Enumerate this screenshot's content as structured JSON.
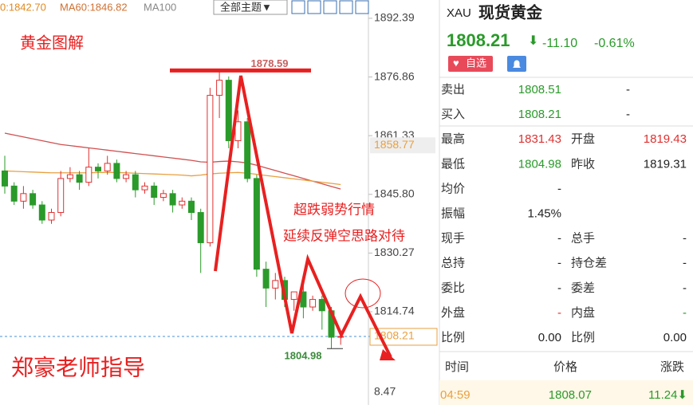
{
  "chart_data": {
    "type": "candlestick",
    "ma_legend": [
      "0:1842.70",
      "MA60:1846.82",
      "MA100"
    ],
    "theme_button": "全部主题▼",
    "ylim": [
      1790.06,
      1897.23
    ],
    "yticks": [
      1892.39,
      1876.86,
      1861.33,
      1845.8,
      1830.27,
      1814.74
    ],
    "ytick_labels": [
      "1892.39",
      "1876.86",
      "1861.33",
      "1845.80",
      "1830.27",
      "1814.74"
    ],
    "cut_label": "8.47",
    "open": [
      1852,
      1848,
      1844,
      1846,
      1843,
      1839,
      1841,
      1850,
      1851,
      1849,
      1853,
      1852,
      1854,
      1850,
      1851,
      1847,
      1848,
      1845,
      1846,
      1843,
      1844,
      1841,
      1833,
      1872,
      1876,
      1860,
      1865,
      1850,
      1826,
      1821,
      1823,
      1818,
      1820,
      1816,
      1818,
      1815,
      1808
    ],
    "high": [
      1856,
      1849,
      1848,
      1847,
      1844,
      1842,
      1852,
      1853,
      1852,
      1858,
      1854,
      1856,
      1855,
      1852,
      1852,
      1849,
      1849,
      1847,
      1847,
      1845,
      1845,
      1842,
      1874,
      1878.59,
      1877,
      1868,
      1866,
      1851,
      1828,
      1825,
      1824,
      1820,
      1822,
      1819,
      1819,
      1816,
      1809
    ],
    "low": [
      1846,
      1843,
      1842,
      1842,
      1838,
      1838,
      1840,
      1849,
      1847,
      1848,
      1850,
      1851,
      1849,
      1849,
      1845,
      1846,
      1843,
      1844,
      1841,
      1842,
      1839,
      1825,
      1832,
      1866,
      1858,
      1858,
      1849,
      1824,
      1816,
      1818,
      1816,
      1815,
      1813,
      1815,
      1810,
      1804.98,
      1806
    ],
    "close": [
      1848,
      1844,
      1846,
      1843,
      1839,
      1841,
      1850,
      1851,
      1849,
      1853,
      1852,
      1854,
      1850,
      1851,
      1847,
      1848,
      1845,
      1846,
      1843,
      1844,
      1841,
      1833,
      1872,
      1876,
      1860,
      1865,
      1850,
      1826,
      1821,
      1823,
      1818,
      1820,
      1816,
      1818,
      1815,
      1808,
      1808.21
    ],
    "up_color": "#e03030",
    "down_color": "#2a9a2a",
    "series": [
      {
        "color": "#d05050",
        "values": [
          1862,
          1861.5,
          1861,
          1860.5,
          1860,
          1859.5,
          1859,
          1858.7,
          1858.4,
          1858.1,
          1857.8,
          1857.5,
          1857.2,
          1856.9,
          1856.6,
          1856.3,
          1856,
          1855.7,
          1855.4,
          1855.1,
          1854.8,
          1854.4,
          1854.3,
          1854.5,
          1854.6,
          1854.4,
          1854.1,
          1853.5,
          1852.8,
          1852.1,
          1851.4,
          1850.7,
          1850,
          1849.3,
          1848.6,
          1847.9,
          1847.2
        ]
      },
      {
        "color": "#e8a040",
        "values": [
          1852,
          1851.9,
          1851.8,
          1851.7,
          1851.6,
          1851.5,
          1851.5,
          1851.5,
          1851.5,
          1851.5,
          1851.6,
          1851.6,
          1851.6,
          1851.5,
          1851.4,
          1851.3,
          1851.2,
          1851.1,
          1851,
          1850.9,
          1850.7,
          1850.9,
          1851.2,
          1851.4,
          1851.5,
          1851.6,
          1851.4,
          1851.1,
          1850.8,
          1850.5,
          1850.2,
          1849.9,
          1849.6,
          1849.3,
          1849,
          1848.7,
          1848.4
        ]
      }
    ],
    "high_label": 1878.59,
    "low_label": 1804.98,
    "ma_tag": 1858.77,
    "price_tag": 1808.21,
    "annotations": [
      "黄金图解",
      "超跌弱势行情",
      "延续反弹空思路对待",
      "郑豪老师指导"
    ]
  },
  "panel": {
    "symbol": "XAU",
    "name": "现货黄金",
    "price": "1808.21",
    "arrow": "⬇",
    "change": "-11.10",
    "pct": "-0.61%",
    "watch": "自选",
    "rows": [
      {
        "label": "卖出",
        "value": "1808.51",
        "value_color": "green",
        "value2": "-"
      },
      {
        "label": "买入",
        "value": "1808.21",
        "value_color": "green",
        "value2": "-"
      },
      {
        "label": "最高",
        "value": "1831.43",
        "value_color": "red",
        "label2": "开盘",
        "value2": "1819.43",
        "value2_color": "red"
      },
      {
        "label": "最低",
        "value": "1804.98",
        "value_color": "green",
        "label2": "昨收",
        "value2": "1819.31"
      },
      {
        "label": "均价",
        "value": "-"
      },
      {
        "label": "振幅",
        "value": "1.45%"
      },
      {
        "label": "现手",
        "value": "-",
        "label2": "总手",
        "value2": "-"
      },
      {
        "label": "总持",
        "value": "-",
        "label2": "持仓差",
        "value2": "-"
      },
      {
        "label": "委比",
        "value": "-",
        "label2": "委差",
        "value2": "-"
      },
      {
        "label": "外盘",
        "value": "-",
        "value_color": "red",
        "label2": "内盘",
        "value2": "-",
        "value2_color": "green"
      },
      {
        "label": "比例",
        "value": "0.00",
        "label2": "比例",
        "value2": "0.00"
      }
    ],
    "trade_header": [
      "时间",
      "价格",
      "涨跌"
    ],
    "trade": [
      "04:59",
      "1808.07",
      "11.24⬇"
    ]
  }
}
